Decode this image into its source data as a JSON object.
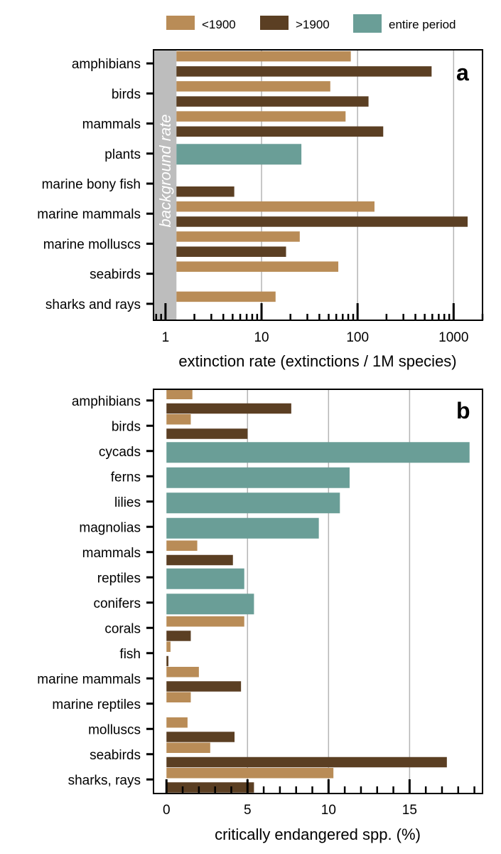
{
  "legend": {
    "items": [
      {
        "label": "<1900",
        "color": "#b98c57"
      },
      {
        "label": ">1900",
        "color": "#5b3f23"
      },
      {
        "label": "entire period",
        "color": "#6a9e97"
      }
    ]
  },
  "colors": {
    "pre1900": "#b98c57",
    "post1900": "#5b3f23",
    "entire": "#6a9e97",
    "background_band": "#bdbdbd",
    "grid": "#b5b5b5"
  },
  "chart_data": [
    {
      "panel_label": "a",
      "type": "bar",
      "orientation": "horizontal",
      "xscale": "log",
      "xlim": [
        0.75,
        2000
      ],
      "xlabel": "extinction rate (extinctions / 1M species)",
      "xticks": [
        1,
        10,
        100,
        1000
      ],
      "xtick_labels": [
        "1",
        "10",
        "100",
        "1000"
      ],
      "grid": "vertical at major ticks",
      "background_rate_label": "background rate",
      "background_rate_range": [
        0.75,
        1.3
      ],
      "categories": [
        "amphibians",
        "birds",
        "mammals",
        "plants",
        "marine bony fish",
        "marine mammals",
        "marine molluscs",
        "seabirds",
        "sharks and rays"
      ],
      "series": [
        {
          "name": "<1900",
          "values": [
            85,
            52,
            75,
            null,
            null,
            150,
            25,
            63,
            14
          ]
        },
        {
          "name": ">1900",
          "values": [
            590,
            130,
            185,
            null,
            5.2,
            1400,
            18,
            null,
            null
          ]
        },
        {
          "name": "entire period",
          "values": [
            null,
            null,
            null,
            26,
            null,
            null,
            null,
            null,
            null
          ]
        }
      ]
    },
    {
      "panel_label": "b",
      "type": "bar",
      "orientation": "horizontal",
      "xscale": "linear",
      "xlim": [
        -0.8,
        19.5
      ],
      "xlabel": "critically endangered spp. (%)",
      "xticks": [
        0,
        5,
        10,
        15
      ],
      "xtick_labels": [
        "0",
        "5",
        "10",
        "15"
      ],
      "grid": "vertical at major ticks",
      "categories": [
        "amphibians",
        "birds",
        "cycads",
        "ferns",
        "lilies",
        "magnolias",
        "mammals",
        "reptiles",
        "conifers",
        "corals",
        "fish",
        "marine mammals",
        "marine reptiles",
        "molluscs",
        "seabirds",
        "sharks, rays"
      ],
      "series": [
        {
          "name": "<1900",
          "values": [
            1.6,
            1.5,
            null,
            null,
            null,
            null,
            1.9,
            null,
            null,
            4.8,
            0.25,
            2.0,
            1.5,
            1.3,
            2.7,
            10.3
          ]
        },
        {
          "name": ">1900",
          "values": [
            7.7,
            5.0,
            null,
            null,
            null,
            null,
            4.1,
            null,
            null,
            1.5,
            0.12,
            4.6,
            null,
            4.2,
            17.3,
            5.4
          ]
        },
        {
          "name": "entire period",
          "values": [
            null,
            null,
            18.7,
            11.3,
            10.7,
            9.4,
            null,
            4.8,
            5.4,
            null,
            null,
            null,
            null,
            null,
            null,
            null
          ]
        }
      ]
    }
  ]
}
